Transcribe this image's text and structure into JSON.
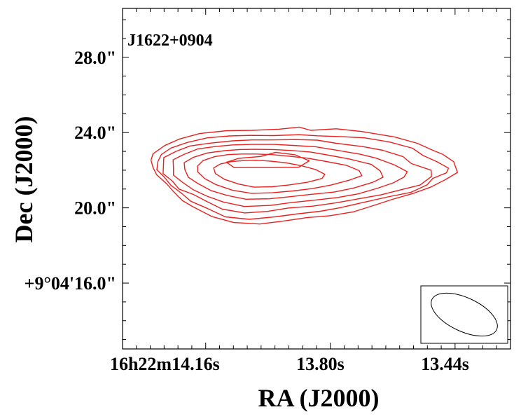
{
  "chart_data": {
    "type": "contour",
    "title": "",
    "annotation": "J1622+0904",
    "xlabel": "RA (J2000)",
    "ylabel": "Dec (J2000)",
    "x_unit": "seconds of RA (16h22m)",
    "y_unit": "arcsec offset from +9°04'00\"",
    "xlim": [
      14.4,
      13.28
    ],
    "ylim": [
      12.5,
      30.6
    ],
    "x_ticks": [
      {
        "value": 14.16,
        "label": "16h22m14.16s"
      },
      {
        "value": 13.8,
        "label": "13.80s"
      },
      {
        "value": 13.44,
        "label": "13.44s"
      }
    ],
    "y_ticks": [
      {
        "value": 16.0,
        "label": "+9°04'16.0\""
      },
      {
        "value": 20.0,
        "label": "20.0\""
      },
      {
        "value": 24.0,
        "label": "24.0\""
      },
      {
        "value": 28.0,
        "label": "28.0\""
      }
    ],
    "contour_color": "#e8211f",
    "grid": false,
    "beam": {
      "shape": "ellipse",
      "orientation": "tilted",
      "position": "bottom-right",
      "boxed": true
    },
    "contours": [
      {
        "level": 1,
        "points": [
          [
            14.026,
            24.12
          ],
          [
            13.949,
            24.18
          ],
          [
            13.89,
            24.29
          ],
          [
            13.857,
            24.12
          ],
          [
            13.783,
            24.2
          ],
          [
            13.711,
            24.06
          ],
          [
            13.615,
            23.77
          ],
          [
            13.549,
            23.43
          ],
          [
            13.504,
            23.06
          ],
          [
            13.476,
            22.85
          ],
          [
            13.444,
            22.45
          ],
          [
            13.433,
            21.88
          ],
          [
            13.467,
            21.51
          ],
          [
            13.509,
            21.11
          ],
          [
            13.56,
            20.77
          ],
          [
            13.621,
            20.45
          ],
          [
            13.664,
            20.19
          ],
          [
            13.733,
            19.79
          ],
          [
            13.802,
            19.58
          ],
          [
            13.868,
            19.48
          ],
          [
            13.938,
            19.29
          ],
          [
            14.004,
            19.14
          ],
          [
            14.079,
            19.22
          ],
          [
            14.141,
            19.53
          ],
          [
            14.197,
            20.06
          ],
          [
            14.227,
            20.38
          ],
          [
            14.252,
            20.85
          ],
          [
            14.273,
            21.28
          ],
          [
            14.302,
            21.77
          ],
          [
            14.312,
            22.15
          ],
          [
            14.318,
            22.53
          ],
          [
            14.312,
            22.87
          ],
          [
            14.278,
            23.31
          ],
          [
            14.235,
            23.66
          ],
          [
            14.177,
            23.95
          ],
          [
            14.099,
            24.1
          ]
        ]
      },
      {
        "level": 2,
        "points": [
          [
            14.031,
            23.85
          ],
          [
            13.964,
            23.84
          ],
          [
            13.89,
            23.89
          ],
          [
            13.838,
            23.83
          ],
          [
            13.765,
            23.78
          ],
          [
            13.702,
            23.72
          ],
          [
            13.63,
            23.5
          ],
          [
            13.563,
            23.17
          ],
          [
            13.532,
            22.78
          ],
          [
            13.493,
            22.46
          ],
          [
            13.459,
            22.11
          ],
          [
            13.465,
            21.86
          ],
          [
            13.504,
            21.57
          ],
          [
            13.521,
            21.22
          ],
          [
            13.568,
            20.82
          ],
          [
            13.634,
            20.58
          ],
          [
            13.711,
            20.26
          ],
          [
            13.773,
            20.0
          ],
          [
            13.829,
            19.82
          ],
          [
            13.899,
            19.67
          ],
          [
            13.96,
            19.52
          ],
          [
            14.034,
            19.39
          ],
          [
            14.103,
            19.52
          ],
          [
            14.154,
            19.96
          ],
          [
            14.203,
            20.35
          ],
          [
            14.232,
            20.81
          ],
          [
            14.26,
            21.19
          ],
          [
            14.28,
            21.64
          ],
          [
            14.301,
            22.03
          ],
          [
            14.298,
            22.46
          ],
          [
            14.288,
            22.83
          ],
          [
            14.26,
            23.18
          ],
          [
            14.212,
            23.48
          ],
          [
            14.155,
            23.72
          ],
          [
            14.091,
            23.82
          ]
        ]
      },
      {
        "level": 3,
        "points": [
          [
            14.026,
            23.61
          ],
          [
            13.97,
            23.61
          ],
          [
            13.901,
            23.63
          ],
          [
            13.838,
            23.6
          ],
          [
            13.783,
            23.43
          ],
          [
            13.708,
            23.26
          ],
          [
            13.649,
            23.06
          ],
          [
            13.59,
            22.72
          ],
          [
            13.566,
            22.35
          ],
          [
            13.509,
            22.0
          ],
          [
            13.508,
            21.67
          ],
          [
            13.541,
            21.21
          ],
          [
            13.596,
            20.96
          ],
          [
            13.654,
            20.69
          ],
          [
            13.718,
            20.48
          ],
          [
            13.785,
            20.26
          ],
          [
            13.851,
            20.09
          ],
          [
            13.922,
            19.99
          ],
          [
            13.982,
            19.81
          ],
          [
            14.047,
            19.73
          ],
          [
            14.112,
            19.93
          ],
          [
            14.158,
            20.35
          ],
          [
            14.195,
            20.71
          ],
          [
            14.237,
            21.0
          ],
          [
            14.256,
            21.42
          ],
          [
            14.283,
            21.82
          ],
          [
            14.282,
            22.25
          ],
          [
            14.281,
            22.67
          ],
          [
            14.246,
            23.0
          ],
          [
            14.205,
            23.29
          ],
          [
            14.147,
            23.44
          ],
          [
            14.082,
            23.56
          ]
        ]
      },
      {
        "level": 4,
        "points": [
          [
            14.029,
            23.37
          ],
          [
            13.963,
            23.37
          ],
          [
            13.909,
            23.32
          ],
          [
            13.843,
            23.25
          ],
          [
            13.787,
            23.08
          ],
          [
            13.714,
            22.85
          ],
          [
            13.668,
            22.64
          ],
          [
            13.615,
            22.28
          ],
          [
            13.578,
            21.92
          ],
          [
            13.587,
            21.64
          ],
          [
            13.618,
            21.33
          ],
          [
            13.666,
            21.03
          ],
          [
            13.72,
            20.74
          ],
          [
            13.78,
            20.55
          ],
          [
            13.844,
            20.41
          ],
          [
            13.912,
            20.28
          ],
          [
            13.972,
            20.13
          ],
          [
            14.048,
            20.07
          ],
          [
            14.109,
            20.31
          ],
          [
            14.156,
            20.62
          ],
          [
            14.196,
            20.96
          ],
          [
            14.228,
            21.37
          ],
          [
            14.253,
            21.74
          ],
          [
            14.253,
            22.13
          ],
          [
            14.254,
            22.55
          ],
          [
            14.223,
            22.84
          ],
          [
            14.183,
            23.13
          ],
          [
            14.131,
            23.26
          ],
          [
            14.085,
            23.34
          ]
        ]
      },
      {
        "level": 5,
        "points": [
          [
            14.019,
            23.11
          ],
          [
            13.966,
            23.1
          ],
          [
            13.915,
            23.05
          ],
          [
            13.858,
            22.97
          ],
          [
            13.799,
            22.78
          ],
          [
            13.744,
            22.59
          ],
          [
            13.682,
            22.31
          ],
          [
            13.656,
            21.96
          ],
          [
            13.648,
            21.63
          ],
          [
            13.677,
            21.36
          ],
          [
            13.733,
            21.05
          ],
          [
            13.789,
            20.84
          ],
          [
            13.859,
            20.71
          ],
          [
            13.918,
            20.59
          ],
          [
            13.976,
            20.48
          ],
          [
            14.044,
            20.46
          ],
          [
            14.098,
            20.66
          ],
          [
            14.145,
            20.92
          ],
          [
            14.182,
            21.29
          ],
          [
            14.21,
            21.62
          ],
          [
            14.22,
            22.03
          ],
          [
            14.222,
            22.4
          ],
          [
            14.195,
            22.69
          ],
          [
            14.154,
            22.92
          ],
          [
            14.104,
            23.04
          ],
          [
            14.062,
            23.1
          ]
        ]
      },
      {
        "level": 6,
        "points": [
          [
            14.016,
            22.86
          ],
          [
            13.971,
            22.83
          ],
          [
            13.922,
            22.75
          ],
          [
            13.867,
            22.64
          ],
          [
            13.817,
            22.48
          ],
          [
            13.754,
            22.26
          ],
          [
            13.717,
            21.98
          ],
          [
            13.709,
            21.71
          ],
          [
            13.744,
            21.48
          ],
          [
            13.798,
            21.21
          ],
          [
            13.853,
            21.02
          ],
          [
            13.908,
            20.9
          ],
          [
            13.968,
            20.8
          ],
          [
            14.028,
            20.77
          ],
          [
            14.083,
            20.94
          ],
          [
            14.13,
            21.23
          ],
          [
            14.163,
            21.56
          ],
          [
            14.183,
            21.91
          ],
          [
            14.183,
            22.23
          ],
          [
            14.168,
            22.51
          ],
          [
            14.134,
            22.72
          ],
          [
            14.094,
            22.83
          ],
          [
            14.055,
            22.86
          ]
        ]
      },
      {
        "level": 7,
        "points": [
          [
            14.014,
            22.53
          ],
          [
            13.973,
            22.48
          ],
          [
            13.93,
            22.4
          ],
          [
            13.884,
            22.24
          ],
          [
            13.842,
            22.03
          ],
          [
            13.816,
            21.78
          ],
          [
            13.824,
            21.56
          ],
          [
            13.866,
            21.36
          ],
          [
            13.919,
            21.22
          ],
          [
            13.968,
            21.12
          ],
          [
            14.02,
            21.1
          ],
          [
            14.064,
            21.26
          ],
          [
            14.105,
            21.51
          ],
          [
            14.132,
            21.82
          ],
          [
            14.137,
            22.12
          ],
          [
            14.118,
            22.33
          ],
          [
            14.085,
            22.46
          ],
          [
            14.049,
            22.51
          ]
        ]
      },
      {
        "level": 8,
        "points": [
          [
            13.958,
            22.95
          ],
          [
            13.902,
            22.82
          ],
          [
            13.861,
            22.5
          ],
          [
            13.891,
            22.16
          ],
          [
            13.965,
            22.14
          ],
          [
            14.032,
            22.14
          ],
          [
            14.078,
            22.14
          ],
          [
            14.1,
            22.42
          ],
          [
            14.065,
            22.63
          ],
          [
            14.001,
            22.73
          ]
        ]
      }
    ]
  }
}
